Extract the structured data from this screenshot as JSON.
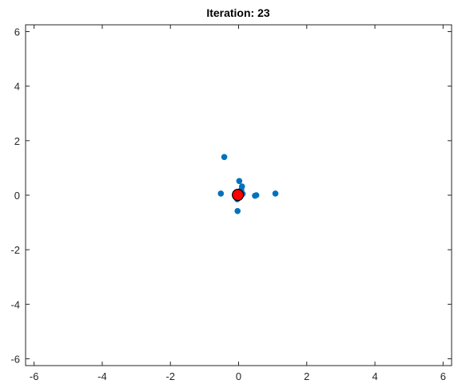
{
  "chart_data": {
    "type": "scatter",
    "title": "Iteration: 23",
    "xlabel": "",
    "ylabel": "",
    "xlim": [
      -6.25,
      6.25
    ],
    "ylim": [
      -6.25,
      6.25
    ],
    "xticks": [
      -6,
      -4,
      -2,
      0,
      2,
      4,
      6
    ],
    "yticks": [
      -6,
      -4,
      -2,
      0,
      2,
      4,
      6
    ],
    "grid": false,
    "series": [
      {
        "color": "#0072BD",
        "points": [
          {
            "x": -0.42,
            "y": 1.4
          },
          {
            "x": -0.52,
            "y": 0.06
          },
          {
            "x": 0.02,
            "y": 0.52
          },
          {
            "x": 0.1,
            "y": 0.32
          },
          {
            "x": 0.08,
            "y": 0.2
          },
          {
            "x": 0.12,
            "y": 0.05
          },
          {
            "x": -0.04,
            "y": -0.15
          },
          {
            "x": 0.03,
            "y": -0.08
          },
          {
            "x": 0.48,
            "y": -0.02
          },
          {
            "x": 0.52,
            "y": 0.0
          },
          {
            "x": 1.08,
            "y": 0.06
          },
          {
            "x": -0.03,
            "y": -0.58
          },
          {
            "x": -0.1,
            "y": 0.0
          },
          {
            "x": 0.05,
            "y": 0.12
          }
        ]
      },
      {
        "color": "#FF0000",
        "edge_color": "#000000",
        "points": [
          {
            "x": -0.02,
            "y": 0.01
          }
        ]
      }
    ]
  }
}
